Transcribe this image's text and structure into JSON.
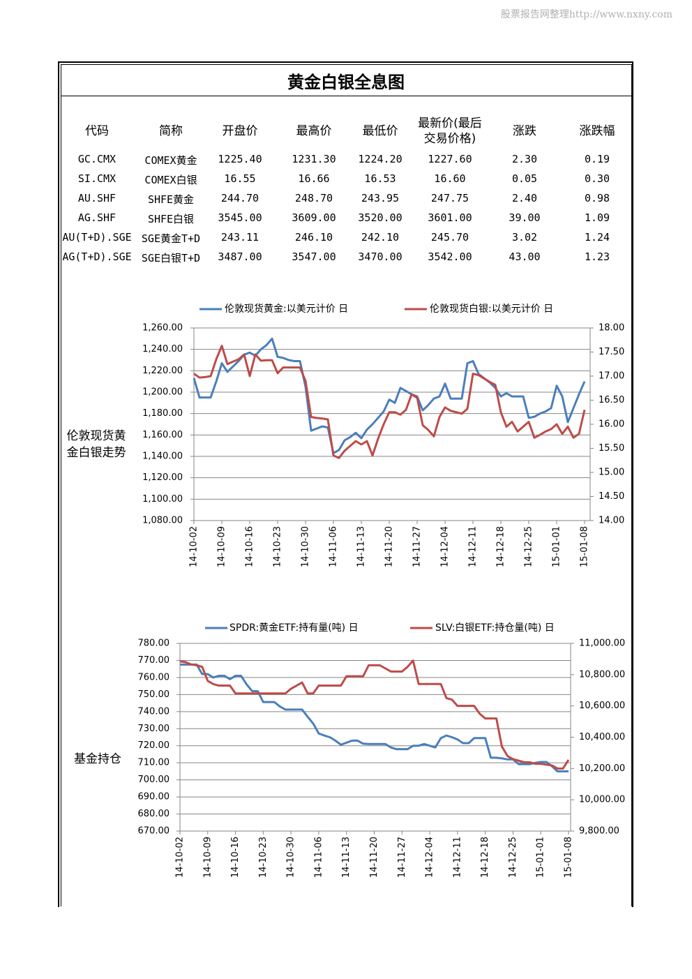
{
  "watermark": "股票报告网整理http://www.nxny.com",
  "title": "黄金白银全息图",
  "table": {
    "headers": [
      "代码",
      "简称",
      "开盘价",
      "最高价",
      "最低价",
      "最新价(最后交易价格)",
      "涨跌",
      "涨跌幅"
    ],
    "rows": [
      [
        "GC.CMX",
        "COMEX黄金",
        "1225.40",
        "1231.30",
        "1224.20",
        "1227.60",
        "2.30",
        "0.19"
      ],
      [
        "SI.CMX",
        "COMEX白银",
        "16.55",
        "16.66",
        "16.53",
        "16.60",
        "0.05",
        "0.30"
      ],
      [
        "AU.SHF",
        "SHFE黄金",
        "244.70",
        "248.70",
        "243.95",
        "247.75",
        "2.40",
        "0.98"
      ],
      [
        "AG.SHF",
        "SHFE白银",
        "3545.00",
        "3609.00",
        "3520.00",
        "3601.00",
        "39.00",
        "1.09"
      ],
      [
        "AU(T+D).SGE",
        "SGE黄金T+D",
        "243.11",
        "246.10",
        "242.10",
        "245.70",
        "3.02",
        "1.24"
      ],
      [
        "AG(T+D).SGE",
        "SGE白银T+D",
        "3487.00",
        "3547.00",
        "3470.00",
        "3542.00",
        "43.00",
        "1.23"
      ]
    ]
  },
  "chart_data": [
    {
      "type": "line",
      "ylabel": "伦敦现货黄金白银走势",
      "grid": true,
      "categories": [
        "14-10-02",
        null,
        null,
        null,
        null,
        "14-10-09",
        null,
        null,
        null,
        null,
        "14-10-16",
        null,
        null,
        null,
        null,
        "14-10-23",
        null,
        null,
        null,
        null,
        "14-10-30",
        null,
        null,
        null,
        null,
        "14-11-06",
        null,
        null,
        null,
        null,
        "14-11-13",
        null,
        null,
        null,
        null,
        "14-11-20",
        null,
        null,
        null,
        null,
        "14-11-27",
        null,
        null,
        null,
        null,
        "14-12-04",
        null,
        null,
        null,
        null,
        "14-12-11",
        null,
        null,
        null,
        null,
        "14-12-18",
        null,
        null,
        null,
        null,
        "14-12-25",
        null,
        null,
        null,
        null,
        "15-01-01",
        null,
        null,
        null,
        null,
        "15-01-08"
      ],
      "series": [
        {
          "name": "伦敦现货黄金:以美元计价 日",
          "color": "#4a7ebb",
          "values": [
            1213,
            1195,
            1195,
            1195,
            1210,
            1227,
            1219,
            1224,
            1229,
            1235,
            1237,
            1234,
            1240,
            1244,
            1250,
            1233,
            1232,
            1230,
            1229,
            1229,
            1205,
            1164,
            1166,
            1168,
            1167,
            1143,
            1146,
            1155,
            1158,
            1162,
            1157,
            1165,
            1170,
            1176,
            1182,
            1193,
            1190,
            1204,
            1201,
            1198,
            1196,
            1183,
            1188,
            1194,
            1196,
            1208,
            1194,
            1194,
            1194,
            1227,
            1229,
            1217,
            1213,
            1209,
            1204,
            1196,
            1199,
            1196,
            1196,
            1196,
            1176,
            1177,
            1180,
            1182,
            1185,
            1206,
            1196,
            1172,
            1185,
            1198,
            1210
          ]
        },
        {
          "name": "伦敦现货白银:以美元计价 日",
          "color": "#be4b48",
          "axis": "y2",
          "values": [
            17.05,
            16.97,
            16.98,
            17.0,
            17.35,
            17.63,
            17.25,
            17.3,
            17.35,
            17.45,
            17.0,
            17.45,
            17.32,
            17.33,
            17.33,
            17.06,
            17.18,
            17.18,
            17.18,
            17.18,
            16.9,
            16.15,
            16.13,
            16.12,
            16.1,
            15.35,
            15.3,
            15.45,
            15.55,
            15.65,
            15.58,
            15.65,
            15.35,
            15.7,
            16.0,
            16.25,
            16.25,
            16.2,
            16.3,
            16.62,
            16.55,
            15.98,
            15.88,
            15.75,
            16.15,
            16.35,
            16.28,
            16.25,
            16.22,
            16.32,
            17.05,
            17.02,
            16.95,
            16.88,
            16.82,
            16.25,
            15.95,
            16.05,
            15.85,
            15.95,
            16.05,
            15.72,
            15.78,
            15.85,
            15.9,
            16.0,
            15.8,
            15.95,
            15.72,
            15.8,
            16.3
          ]
        }
      ],
      "ylim": [
        1080,
        1260
      ],
      "yticks": [
        {
          "value": 1080,
          "label": "1,080.00"
        },
        {
          "value": 1100,
          "label": "1,100.00"
        },
        {
          "value": 1120,
          "label": "1,120.00"
        },
        {
          "value": 1140,
          "label": "1,140.00"
        },
        {
          "value": 1160,
          "label": "1,160.00"
        },
        {
          "value": 1180,
          "label": "1,180.00"
        },
        {
          "value": 1200,
          "label": "1,200.00"
        },
        {
          "value": 1220,
          "label": "1,220.00"
        },
        {
          "value": 1240,
          "label": "1,240.00"
        },
        {
          "value": 1260,
          "label": "1,260.00"
        }
      ],
      "y2lim": [
        14,
        18
      ],
      "y2ticks": [
        {
          "value": 14,
          "label": "14.00"
        },
        {
          "value": 14.5,
          "label": "14.50"
        },
        {
          "value": 15,
          "label": "15.00"
        },
        {
          "value": 15.5,
          "label": "15.50"
        },
        {
          "value": 16,
          "label": "16.00"
        },
        {
          "value": 16.5,
          "label": "16.50"
        },
        {
          "value": 17,
          "label": "17.00"
        },
        {
          "value": 17.5,
          "label": "17.50"
        },
        {
          "value": 18,
          "label": "18.00"
        }
      ]
    },
    {
      "type": "line",
      "ylabel": "基金持仓",
      "grid": true,
      "categories": [
        "14-10-02",
        null,
        null,
        null,
        null,
        "14-10-09",
        null,
        null,
        null,
        null,
        "14-10-16",
        null,
        null,
        null,
        null,
        "14-10-23",
        null,
        null,
        null,
        null,
        "14-10-30",
        null,
        null,
        null,
        null,
        "14-11-06",
        null,
        null,
        null,
        null,
        "14-11-13",
        null,
        null,
        null,
        null,
        "14-11-20",
        null,
        null,
        null,
        null,
        "14-11-27",
        null,
        null,
        null,
        null,
        "14-12-04",
        null,
        null,
        null,
        null,
        "14-12-11",
        null,
        null,
        null,
        null,
        "14-12-18",
        null,
        null,
        null,
        null,
        "14-12-25",
        null,
        null,
        null,
        null,
        "15-01-01",
        null,
        null,
        null,
        null,
        "15-01-08"
      ],
      "series": [
        {
          "name": "SPDR:黄金ETF:持有量(吨) 日",
          "color": "#4a7ebb",
          "values": [
            767.6,
            767.6,
            767.6,
            767.6,
            762,
            762,
            760,
            761,
            761,
            759,
            761,
            761,
            756,
            752,
            752,
            745.6,
            745.6,
            745.6,
            743,
            741.2,
            741.2,
            741.2,
            741.2,
            737,
            733,
            727.2,
            726,
            725,
            723,
            720.6,
            721.8,
            723,
            723,
            721.2,
            721,
            721,
            721,
            721,
            719,
            718,
            718,
            718,
            720,
            720,
            721,
            720,
            719,
            724.5,
            726,
            725,
            723.7,
            721.5,
            721.5,
            724.5,
            724.5,
            724.5,
            713,
            713,
            712.6,
            712,
            712,
            709.2,
            709.2,
            709.2,
            710,
            710.5,
            710.5,
            708,
            705,
            705,
            705
          ]
        },
        {
          "name": "SLV:白银ETF:持仓量(吨) 日",
          "color": "#be4b48",
          "axis": "y2",
          "values": [
            10885,
            10880,
            10865,
            10860,
            10850,
            10760,
            10740,
            10730,
            10730,
            10730,
            10680,
            10680,
            10680,
            10680,
            10680,
            10680,
            10680,
            10680,
            10680,
            10680,
            10710,
            10730,
            10750,
            10680,
            10680,
            10730,
            10730,
            10730,
            10730,
            10730,
            10790,
            10790,
            10790,
            10790,
            10860,
            10860,
            10860,
            10840,
            10820,
            10820,
            10820,
            10850,
            10890,
            10740,
            10740,
            10740,
            10740,
            10740,
            10650,
            10640,
            10600,
            10600,
            10600,
            10600,
            10550,
            10520,
            10520,
            10520,
            10340,
            10280,
            10260,
            10250,
            10240,
            10240,
            10230,
            10230,
            10225,
            10220,
            10200,
            10200,
            10255
          ]
        }
      ],
      "ylim": [
        670,
        780
      ],
      "yticks": [
        {
          "value": 670,
          "label": "670.00"
        },
        {
          "value": 680,
          "label": "680.00"
        },
        {
          "value": 690,
          "label": "690.00"
        },
        {
          "value": 700,
          "label": "700.00"
        },
        {
          "value": 710,
          "label": "710.00"
        },
        {
          "value": 720,
          "label": "720.00"
        },
        {
          "value": 730,
          "label": "730.00"
        },
        {
          "value": 740,
          "label": "740.00"
        },
        {
          "value": 750,
          "label": "750.00"
        },
        {
          "value": 760,
          "label": "760.00"
        },
        {
          "value": 770,
          "label": "770.00"
        },
        {
          "value": 780,
          "label": "780.00"
        }
      ],
      "y2lim": [
        9800,
        11000
      ],
      "y2ticks": [
        {
          "value": 9800,
          "label": "9,800.00"
        },
        {
          "value": 10000,
          "label": "10,000.00"
        },
        {
          "value": 10200,
          "label": "10,200.00"
        },
        {
          "value": 10400,
          "label": "10,400.00"
        },
        {
          "value": 10600,
          "label": "10,600.00"
        },
        {
          "value": 10800,
          "label": "10,800.00"
        },
        {
          "value": 11000,
          "label": "11,000.00"
        }
      ]
    }
  ]
}
